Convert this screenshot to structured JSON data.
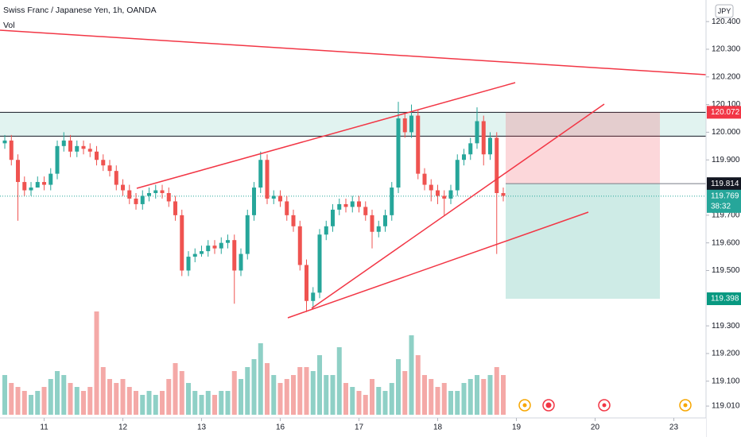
{
  "header": {
    "symbol": "Swiss Franc / Japanese Yen, 1h, OANDA",
    "indicator": "Vol"
  },
  "chart_data": {
    "type": "candlestick",
    "currency": "JPY",
    "up_color": "#26a69a",
    "down_color": "#ef5350",
    "volume_up_color": "#8fd0c6",
    "volume_down_color": "#f4a9a7",
    "open": [
      119.96,
      119.97,
      119.9,
      119.82,
      119.79,
      119.8,
      119.82,
      119.81,
      119.85,
      119.95,
      119.97,
      119.93,
      119.95,
      119.94,
      119.93,
      119.9,
      119.88,
      119.86,
      119.81,
      119.79,
      119.76,
      119.74,
      119.77,
      119.78,
      119.79,
      119.78,
      119.75,
      119.7,
      119.5,
      119.55,
      119.56,
      119.57,
      119.59,
      119.58,
      119.6,
      119.61,
      119.5,
      119.56,
      119.7,
      119.8,
      119.9,
      119.76,
      119.77,
      119.75,
      119.7,
      119.66,
      119.52,
      119.39,
      119.42,
      119.63,
      119.66,
      119.72,
      119.74,
      119.73,
      119.75,
      119.73,
      119.7,
      119.64,
      119.66,
      119.7,
      119.8,
      120.05,
      120.0,
      120.06,
      119.85,
      119.81,
      119.79,
      119.77,
      119.76,
      119.79,
      119.9,
      119.92,
      119.96,
      120.04,
      119.92,
      119.98,
      119.78
    ],
    "high": [
      119.99,
      119.99,
      119.92,
      119.84,
      119.82,
      119.84,
      119.84,
      119.87,
      119.97,
      120.0,
      119.99,
      119.97,
      119.97,
      119.96,
      119.95,
      119.92,
      119.9,
      119.88,
      119.83,
      119.81,
      119.78,
      119.79,
      119.8,
      119.81,
      119.81,
      119.8,
      119.77,
      119.72,
      119.57,
      119.58,
      119.59,
      119.61,
      119.61,
      119.62,
      119.63,
      119.63,
      119.58,
      119.72,
      119.82,
      119.93,
      119.92,
      119.79,
      119.79,
      119.77,
      119.72,
      119.68,
      119.54,
      119.44,
      119.65,
      119.68,
      119.74,
      119.76,
      119.76,
      119.77,
      119.77,
      119.75,
      119.72,
      119.68,
      119.72,
      119.82,
      120.11,
      120.07,
      120.1,
      120.08,
      119.87,
      119.83,
      119.81,
      119.79,
      119.81,
      119.92,
      119.94,
      119.98,
      120.09,
      120.06,
      120.0,
      120.0,
      119.8
    ],
    "low": [
      119.94,
      119.88,
      119.68,
      119.77,
      119.77,
      119.8,
      119.79,
      119.79,
      119.83,
      119.93,
      119.91,
      119.91,
      119.92,
      119.91,
      119.88,
      119.86,
      119.84,
      119.79,
      119.77,
      119.74,
      119.72,
      119.72,
      119.75,
      119.76,
      119.76,
      119.73,
      119.68,
      119.48,
      119.48,
      119.53,
      119.55,
      119.55,
      119.56,
      119.56,
      119.58,
      119.38,
      119.48,
      119.54,
      119.68,
      119.78,
      119.74,
      119.74,
      119.73,
      119.68,
      119.64,
      119.5,
      119.35,
      119.36,
      119.4,
      119.61,
      119.64,
      119.7,
      119.71,
      119.71,
      119.71,
      119.68,
      119.58,
      119.62,
      119.64,
      119.68,
      119.78,
      119.98,
      119.98,
      119.83,
      119.79,
      119.75,
      119.74,
      119.7,
      119.74,
      119.77,
      119.88,
      119.9,
      119.94,
      119.88,
      119.9,
      119.56,
      119.75
    ],
    "close": [
      119.97,
      119.9,
      119.82,
      119.79,
      119.8,
      119.82,
      119.81,
      119.85,
      119.95,
      119.97,
      119.93,
      119.95,
      119.94,
      119.93,
      119.9,
      119.88,
      119.86,
      119.81,
      119.79,
      119.76,
      119.74,
      119.77,
      119.78,
      119.79,
      119.78,
      119.75,
      119.7,
      119.5,
      119.55,
      119.56,
      119.57,
      119.59,
      119.58,
      119.6,
      119.61,
      119.5,
      119.56,
      119.7,
      119.8,
      119.9,
      119.76,
      119.77,
      119.75,
      119.7,
      119.66,
      119.52,
      119.39,
      119.42,
      119.63,
      119.66,
      119.72,
      119.74,
      119.73,
      119.75,
      119.73,
      119.7,
      119.64,
      119.66,
      119.7,
      119.8,
      120.05,
      120.0,
      120.06,
      119.85,
      119.81,
      119.79,
      119.77,
      119.76,
      119.79,
      119.9,
      119.92,
      119.96,
      120.04,
      119.92,
      119.98,
      119.78,
      119.77
    ],
    "volume": [
      50,
      40,
      35,
      30,
      25,
      30,
      35,
      45,
      55,
      50,
      40,
      35,
      30,
      35,
      130,
      60,
      45,
      40,
      45,
      35,
      30,
      25,
      30,
      25,
      30,
      45,
      65,
      55,
      40,
      30,
      25,
      30,
      25,
      30,
      30,
      55,
      45,
      60,
      70,
      90,
      65,
      50,
      40,
      45,
      50,
      60,
      60,
      55,
      75,
      50,
      50,
      85,
      40,
      35,
      30,
      25,
      45,
      35,
      30,
      40,
      70,
      55,
      100,
      75,
      50,
      45,
      35,
      40,
      30,
      30,
      40,
      45,
      50,
      45,
      50,
      60,
      50
    ],
    "ylim": [
      118.97,
      120.478
    ],
    "yticks": [
      {
        "value": 120.4,
        "label": "120.400"
      },
      {
        "value": 120.3,
        "label": "120.300"
      },
      {
        "value": 120.2,
        "label": "120.200"
      },
      {
        "value": 120.1,
        "label": "120.100"
      },
      {
        "value": 120.0,
        "label": "120.000"
      },
      {
        "value": 119.9,
        "label": "119.900"
      },
      {
        "value": 119.7,
        "label": "119.700"
      },
      {
        "value": 119.6,
        "label": "119.600"
      },
      {
        "value": 119.5,
        "label": "119.500"
      },
      {
        "value": 119.3,
        "label": "119.300"
      },
      {
        "value": 119.2,
        "label": "119.200"
      },
      {
        "value": 119.1,
        "label": "119.100"
      },
      {
        "value": 119.01,
        "label": "119.010"
      }
    ],
    "xlim": [
      -0.73,
      106.91
    ],
    "xticks": [
      {
        "value": 6,
        "label": "11"
      },
      {
        "value": 18,
        "label": "12"
      },
      {
        "value": 30,
        "label": "13"
      },
      {
        "value": 42,
        "label": "16"
      },
      {
        "value": 54,
        "label": "17"
      },
      {
        "value": 66,
        "label": "18"
      },
      {
        "value": 78,
        "label": "19"
      },
      {
        "value": 90,
        "label": "20"
      },
      {
        "value": 102,
        "label": "23"
      }
    ],
    "stop_price": 120.072,
    "entry_price": 119.814,
    "last_price": 119.769,
    "countdown": "38:32",
    "target_price": 119.398
  }
}
